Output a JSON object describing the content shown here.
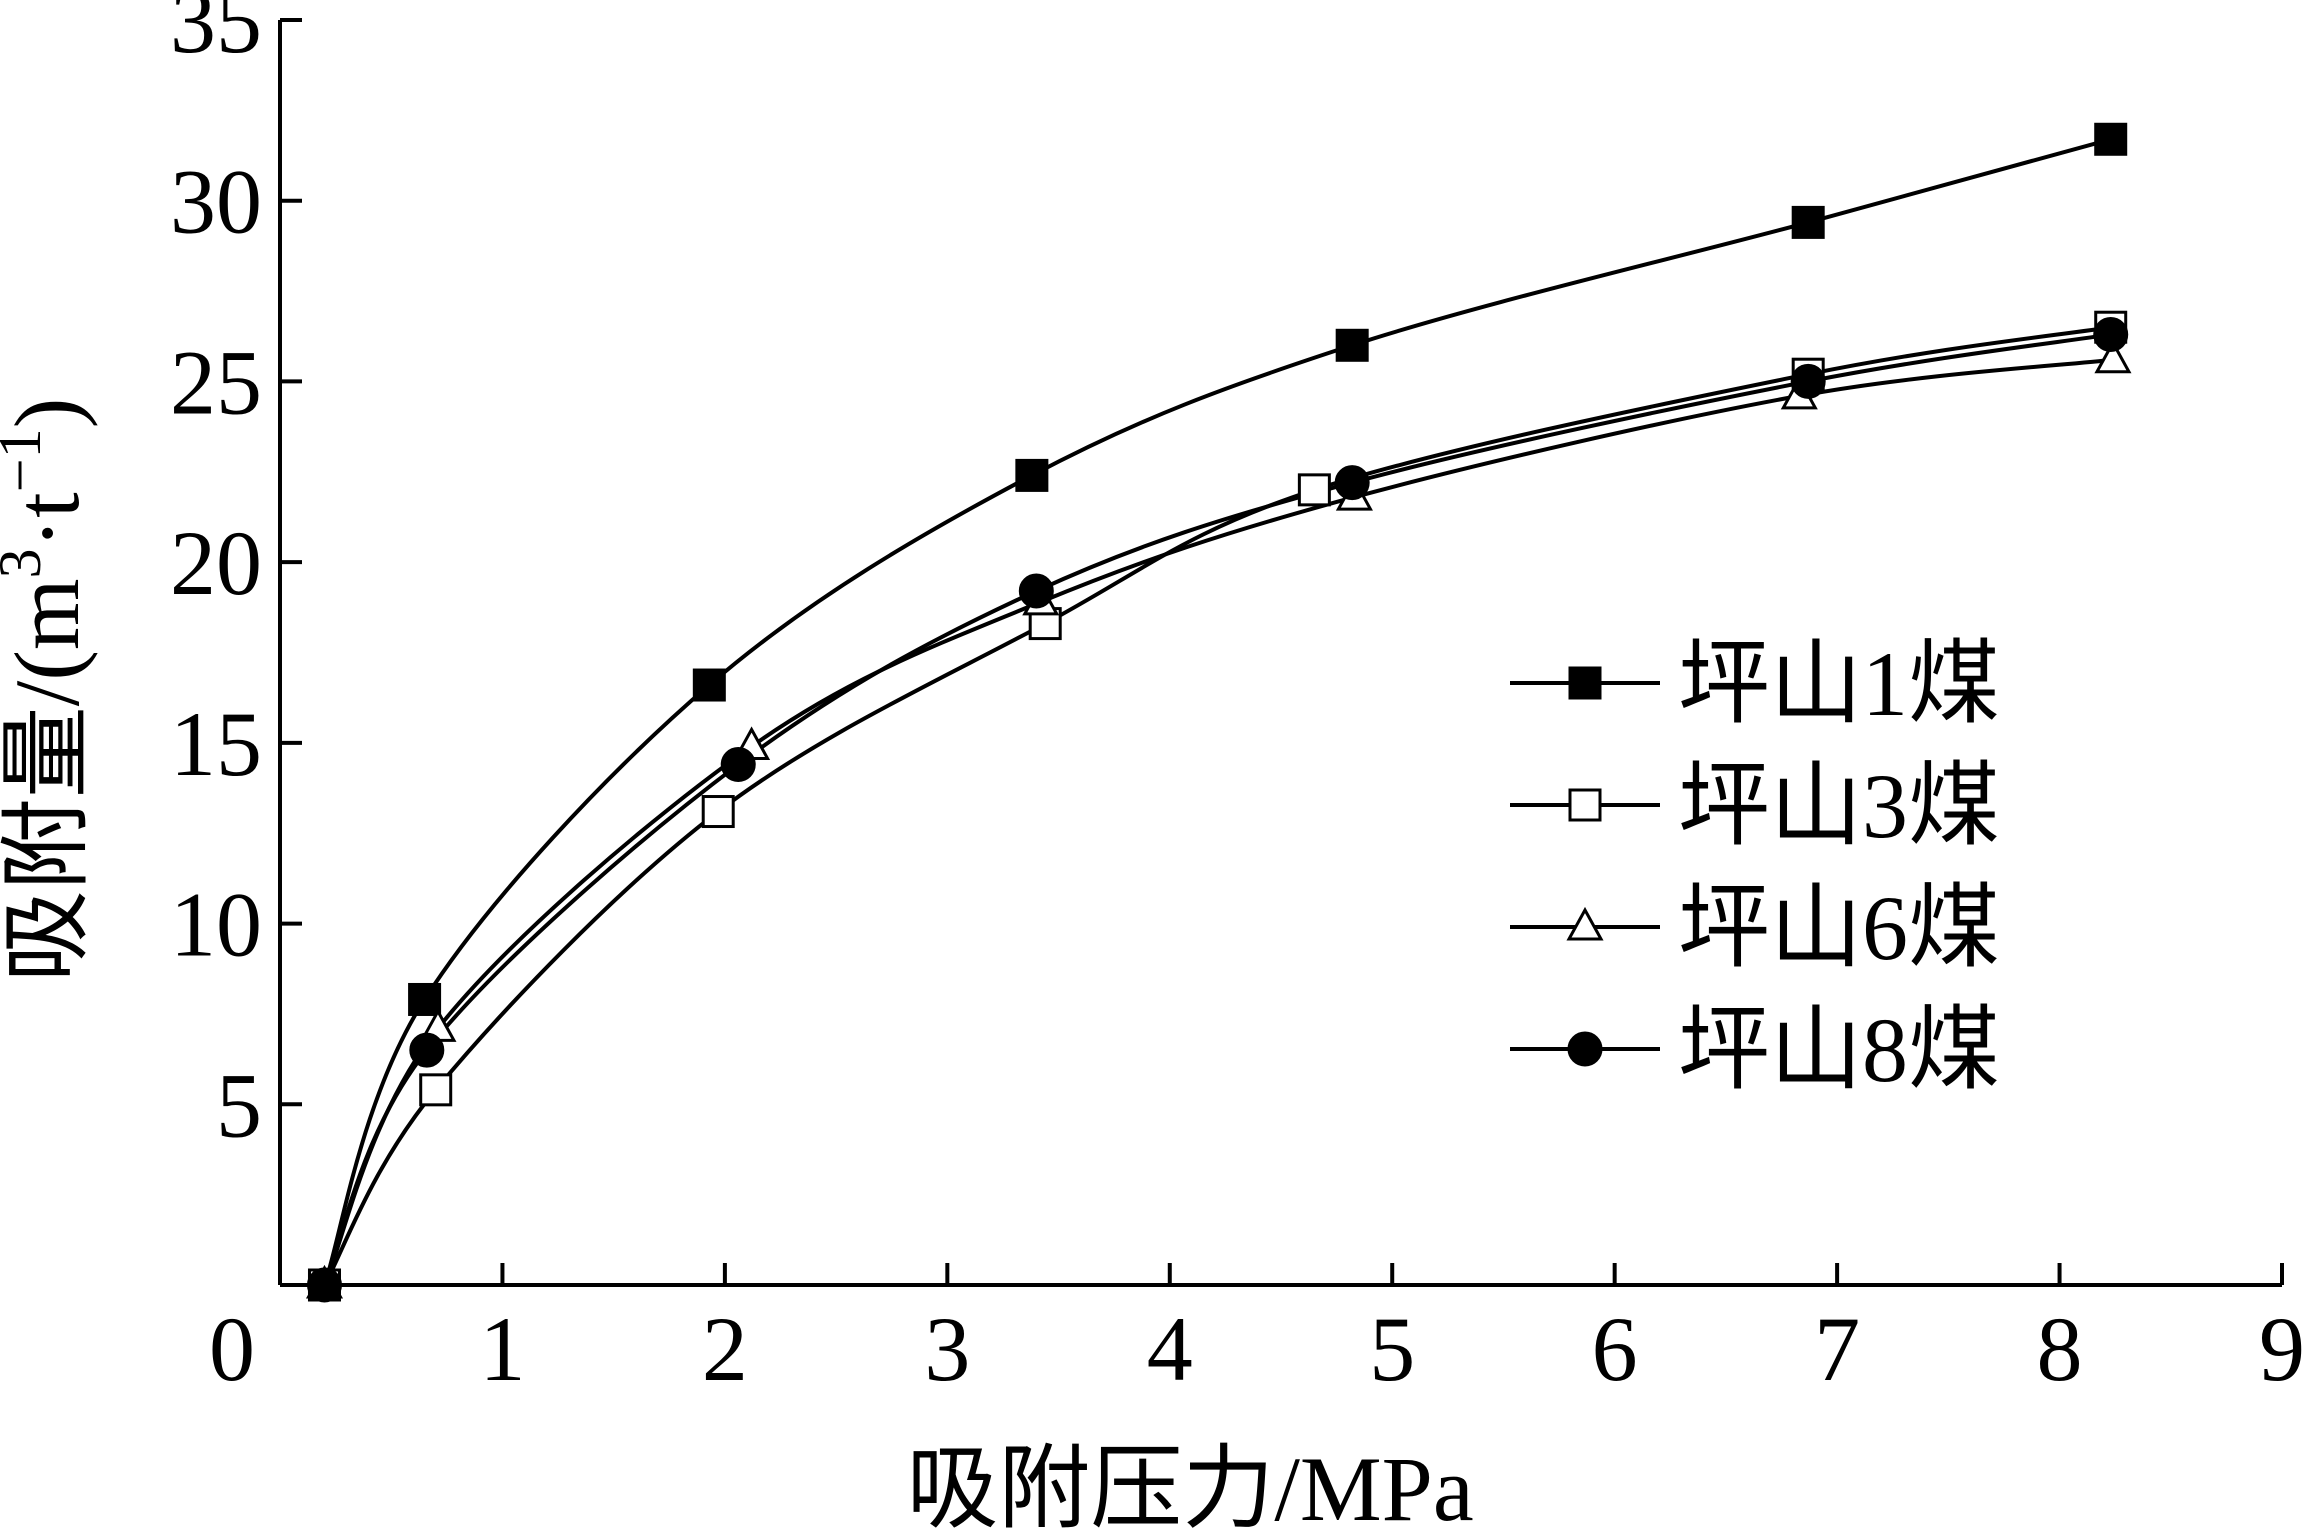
{
  "chart_data": {
    "type": "line",
    "xlabel": "吸附压力/MPa",
    "ylabel": "吸附量/(m³·t⁻¹)",
    "ylabel_parts": {
      "main": "吸附量/(m",
      "sup1": "3",
      "mid": "·t",
      "sup2": "−1",
      "end": ")"
    },
    "xlim": [
      0,
      9
    ],
    "ylim": [
      0,
      35
    ],
    "xticks": [
      0,
      1,
      2,
      3,
      4,
      5,
      6,
      7,
      8,
      9
    ],
    "yticks": [
      5,
      10,
      15,
      20,
      25,
      30,
      35
    ],
    "legend_position": "right",
    "grid": false,
    "series": [
      {
        "name": "坪山1煤",
        "marker": "square-filled",
        "points": [
          [
            0.2,
            0
          ],
          [
            0.65,
            7.9
          ],
          [
            1.93,
            16.6
          ],
          [
            3.38,
            22.4
          ],
          [
            4.82,
            26.0
          ],
          [
            6.87,
            29.4
          ],
          [
            8.23,
            31.7
          ]
        ]
      },
      {
        "name": "坪山3煤",
        "marker": "square-open",
        "points": [
          [
            0.2,
            0
          ],
          [
            0.7,
            5.4
          ],
          [
            1.97,
            13.1
          ],
          [
            3.44,
            18.3
          ],
          [
            4.65,
            22.0
          ],
          [
            6.87,
            25.2
          ],
          [
            8.23,
            26.5
          ]
        ]
      },
      {
        "name": "坪山6煤",
        "marker": "triangle-open",
        "points": [
          [
            0.2,
            0
          ],
          [
            0.71,
            7.1
          ],
          [
            2.12,
            14.9
          ],
          [
            3.42,
            18.9
          ],
          [
            4.83,
            21.8
          ],
          [
            6.83,
            24.6
          ],
          [
            8.24,
            25.6
          ]
        ]
      },
      {
        "name": "坪山8煤",
        "marker": "circle-filled",
        "points": [
          [
            0.2,
            0
          ],
          [
            0.66,
            6.5
          ],
          [
            2.06,
            14.4
          ],
          [
            3.4,
            19.2
          ],
          [
            4.82,
            22.2
          ],
          [
            6.87,
            25.0
          ],
          [
            8.23,
            26.3
          ]
        ]
      }
    ]
  }
}
